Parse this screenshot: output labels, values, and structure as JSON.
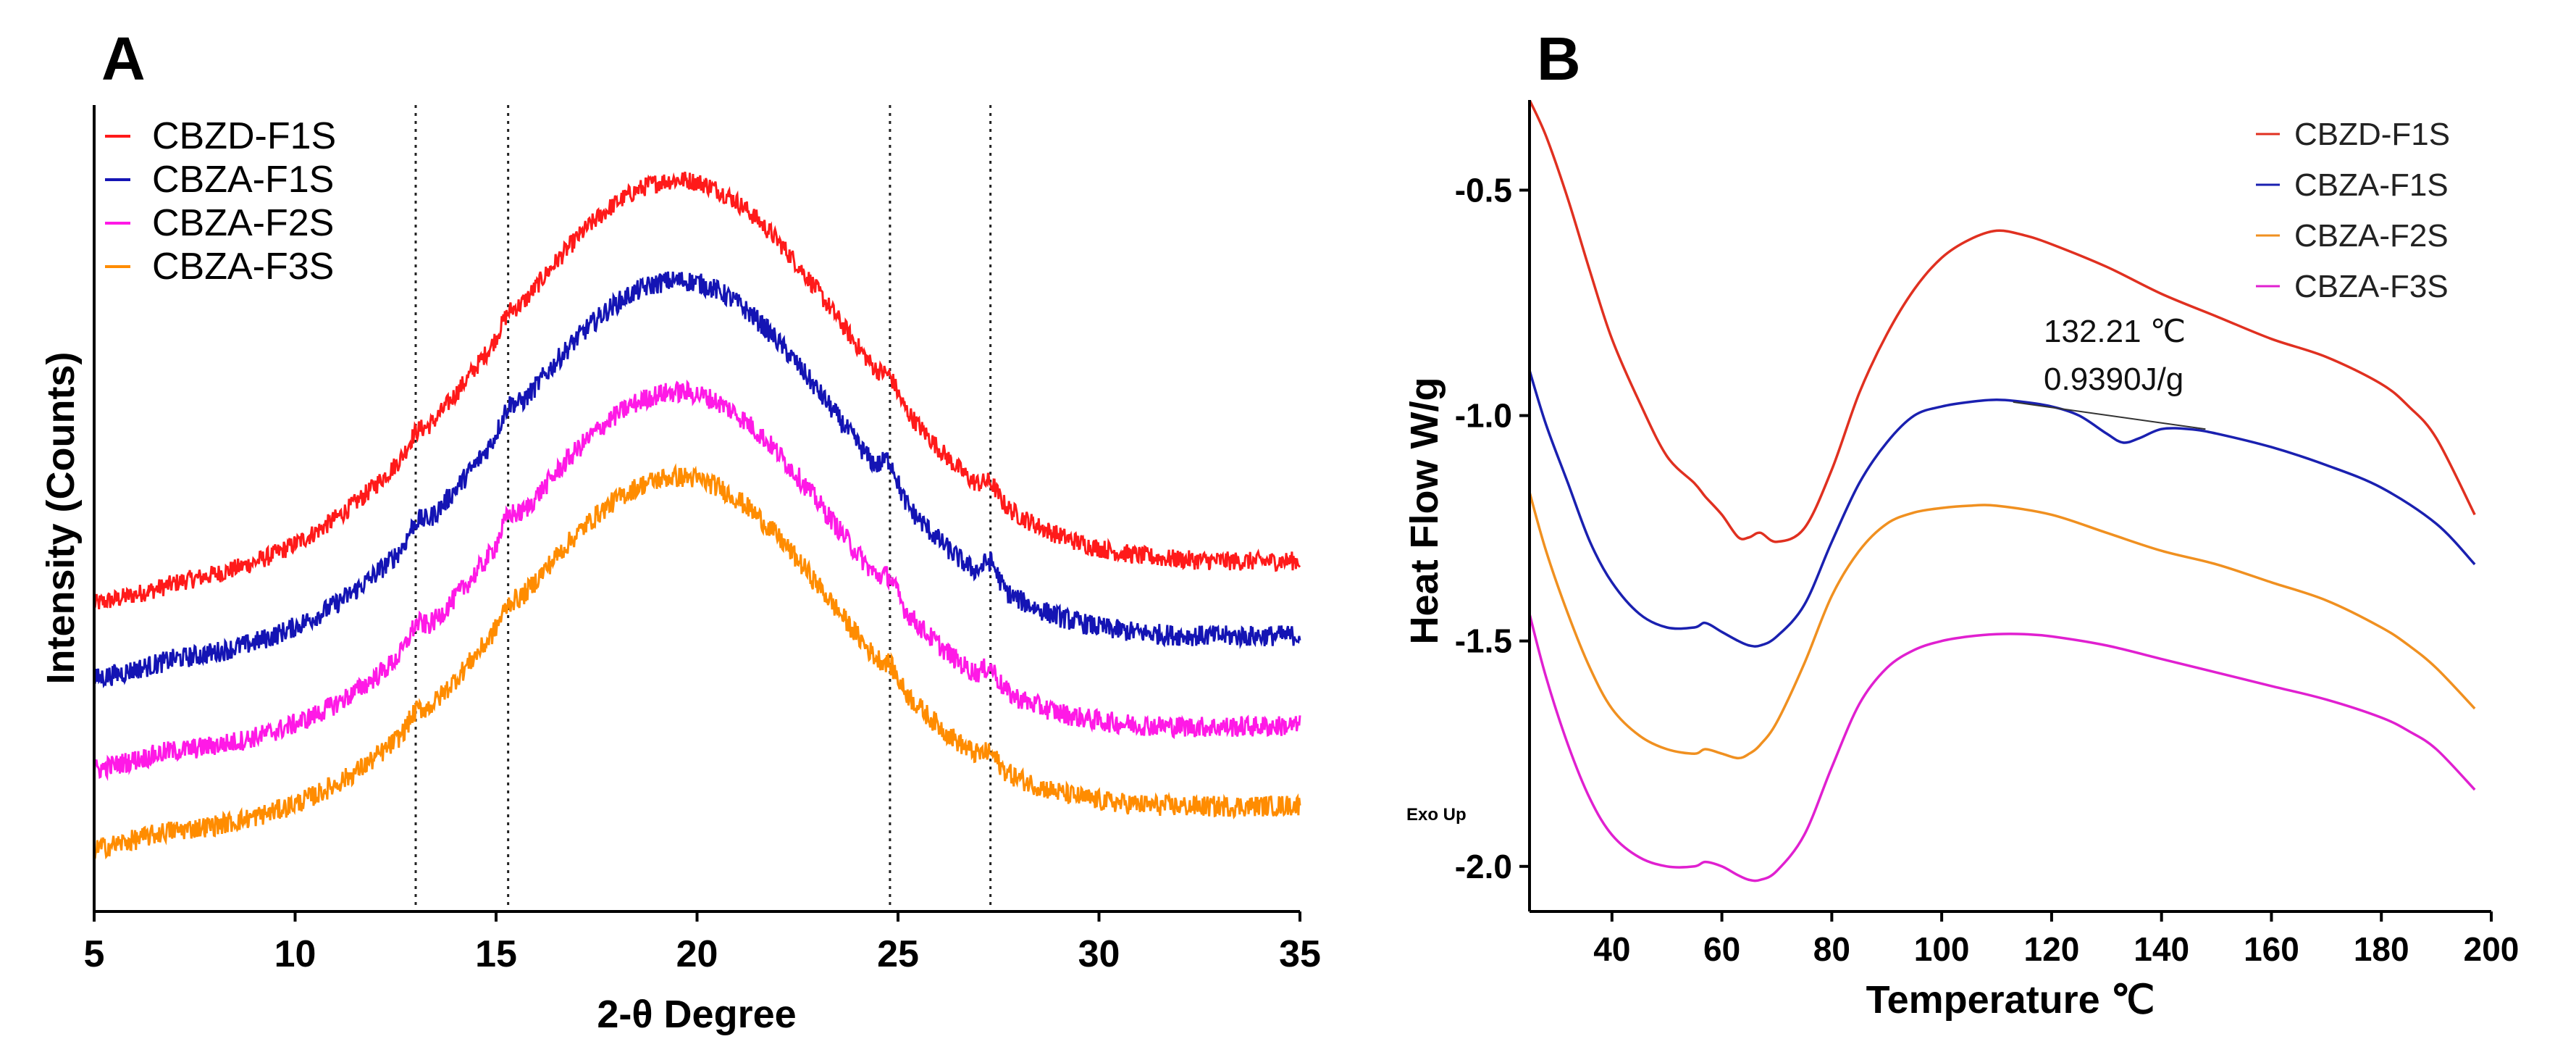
{
  "chart_data": [
    {
      "panel": "A",
      "type": "line",
      "xlabel": "2-θ Degree",
      "ylabel": "Intensity (Counts)",
      "xlim": [
        5,
        35
      ],
      "xticks": [
        "5",
        "10",
        "15",
        "20",
        "25",
        "30",
        "35"
      ],
      "yticks_shown": false,
      "legend_position": "top-left",
      "reference_lines_x": [
        13,
        15.3,
        24.8,
        27.3
      ],
      "series": [
        {
          "name": "CBZD-F1S",
          "color": "#ff1a1a",
          "peak_x": 19.5,
          "base": 6.0,
          "amp": 7.5,
          "w_left": 6.4,
          "w_right": 6.0,
          "noise": 0.18,
          "left_tail": [
            5,
            7.2
          ],
          "humps": [
            [
              13,
              0.2
            ],
            [
              15.3,
              0.2
            ],
            [
              24.8,
              0.25
            ],
            [
              27.3,
              0.25
            ]
          ]
        },
        {
          "name": "CBZA-F1S",
          "color": "#1414b4",
          "peak_x": 19.5,
          "base": 4.6,
          "amp": 7.0,
          "w_left": 6.2,
          "w_right": 5.8,
          "noise": 0.2,
          "left_tail": [
            5,
            7.0
          ],
          "humps": [
            [
              13,
              0.25
            ],
            [
              15.3,
              0.3
            ],
            [
              24.8,
              0.45
            ],
            [
              27.3,
              0.4
            ]
          ]
        },
        {
          "name": "CBZA-F2S",
          "color": "#ff19e6",
          "peak_x": 19.5,
          "base": 2.9,
          "amp": 6.6,
          "w_left": 6.0,
          "w_right": 5.6,
          "noise": 0.2,
          "left_tail": [
            5,
            6.8
          ],
          "humps": [
            [
              13,
              0.3
            ],
            [
              15.3,
              0.3
            ],
            [
              24.8,
              0.3
            ],
            [
              27.3,
              0.3
            ]
          ]
        },
        {
          "name": "CBZA-F3S",
          "color": "#ff8c00",
          "peak_x": 19.5,
          "base": 1.4,
          "amp": 6.5,
          "w_left": 6.0,
          "w_right": 5.6,
          "noise": 0.2,
          "left_tail": [
            5,
            6.8
          ],
          "humps": [
            [
              13,
              0.2
            ],
            [
              15.3,
              0.2
            ],
            [
              24.8,
              0.2
            ],
            [
              27.3,
              0.2
            ]
          ]
        }
      ]
    },
    {
      "panel": "B",
      "type": "line",
      "xlabel": "Temperature ℃",
      "ylabel": "Heat Flow W/g",
      "xlim": [
        25,
        200
      ],
      "ylim": [
        -2.1,
        -0.3
      ],
      "xticks": [
        "40",
        "60",
        "80",
        "100",
        "120",
        "140",
        "160",
        "180",
        "200"
      ],
      "yticks": [
        {
          "value": -0.5,
          "label": "-0.5"
        },
        {
          "value": -1.0,
          "label": "-1.0"
        },
        {
          "value": -1.5,
          "label": "-1.5"
        },
        {
          "value": -2.0,
          "label": "-2.0"
        }
      ],
      "legend_position": "top-right",
      "corner_label": "Exo Up",
      "annotation": {
        "line1": "132.21 ℃",
        "line2": "0.9390J/g",
        "baseline_x": [
          113,
          148
        ],
        "baseline_y": [
          -0.97,
          -1.03
        ]
      },
      "series": [
        {
          "name": "CBZD-F1S",
          "color": "#e03020",
          "x": [
            25,
            28,
            32,
            36,
            40,
            45,
            50,
            55,
            57,
            60,
            63,
            65,
            67,
            70,
            75,
            80,
            85,
            90,
            95,
            100,
            105,
            110,
            115,
            120,
            130,
            140,
            150,
            160,
            170,
            180,
            185,
            190,
            197
          ],
          "y": [
            -0.3,
            -0.38,
            -0.52,
            -0.68,
            -0.83,
            -0.97,
            -1.09,
            -1.15,
            -1.18,
            -1.22,
            -1.27,
            -1.27,
            -1.26,
            -1.28,
            -1.25,
            -1.12,
            -0.95,
            -0.82,
            -0.72,
            -0.65,
            -0.61,
            -0.59,
            -0.6,
            -0.62,
            -0.67,
            -0.73,
            -0.78,
            -0.83,
            -0.87,
            -0.93,
            -0.98,
            -1.05,
            -1.22
          ]
        },
        {
          "name": "CBZA-F1S",
          "color": "#1a20b0",
          "x": [
            25,
            28,
            32,
            36,
            40,
            45,
            50,
            55,
            57,
            60,
            63,
            65,
            67,
            70,
            75,
            80,
            85,
            90,
            95,
            100,
            105,
            110,
            115,
            120,
            125,
            130,
            133,
            136,
            140,
            145,
            150,
            160,
            170,
            180,
            190,
            197
          ],
          "y": [
            -0.9,
            -1.02,
            -1.15,
            -1.28,
            -1.37,
            -1.44,
            -1.47,
            -1.47,
            -1.46,
            -1.48,
            -1.5,
            -1.51,
            -1.51,
            -1.49,
            -1.42,
            -1.28,
            -1.15,
            -1.06,
            -1.0,
            -0.98,
            -0.97,
            -0.965,
            -0.97,
            -0.98,
            -1.0,
            -1.04,
            -1.06,
            -1.05,
            -1.03,
            -1.03,
            -1.04,
            -1.07,
            -1.11,
            -1.16,
            -1.24,
            -1.33
          ]
        },
        {
          "name": "CBZA-F2S",
          "color": "#f09020",
          "x": [
            25,
            28,
            32,
            36,
            40,
            45,
            50,
            55,
            57,
            60,
            63,
            65,
            67,
            70,
            75,
            80,
            85,
            90,
            95,
            100,
            105,
            110,
            120,
            130,
            140,
            150,
            160,
            170,
            180,
            185,
            190,
            197
          ],
          "y": [
            -1.17,
            -1.3,
            -1.44,
            -1.56,
            -1.65,
            -1.71,
            -1.74,
            -1.75,
            -1.74,
            -1.75,
            -1.76,
            -1.75,
            -1.73,
            -1.68,
            -1.55,
            -1.4,
            -1.3,
            -1.24,
            -1.215,
            -1.205,
            -1.2,
            -1.2,
            -1.22,
            -1.26,
            -1.3,
            -1.33,
            -1.37,
            -1.41,
            -1.47,
            -1.51,
            -1.56,
            -1.65
          ]
        },
        {
          "name": "CBZA-F3S",
          "color": "#e020d0",
          "x": [
            25,
            28,
            32,
            36,
            40,
            45,
            50,
            55,
            57,
            60,
            63,
            65,
            67,
            70,
            75,
            80,
            85,
            90,
            95,
            100,
            105,
            110,
            115,
            120,
            130,
            140,
            150,
            160,
            170,
            180,
            185,
            190,
            197
          ],
          "y": [
            -1.44,
            -1.58,
            -1.73,
            -1.85,
            -1.93,
            -1.98,
            -2.0,
            -2.0,
            -1.99,
            -2.0,
            -2.02,
            -2.03,
            -2.03,
            -2.01,
            -1.93,
            -1.78,
            -1.64,
            -1.56,
            -1.52,
            -1.5,
            -1.49,
            -1.485,
            -1.485,
            -1.49,
            -1.51,
            -1.54,
            -1.57,
            -1.6,
            -1.63,
            -1.67,
            -1.7,
            -1.74,
            -1.83
          ]
        }
      ]
    }
  ]
}
